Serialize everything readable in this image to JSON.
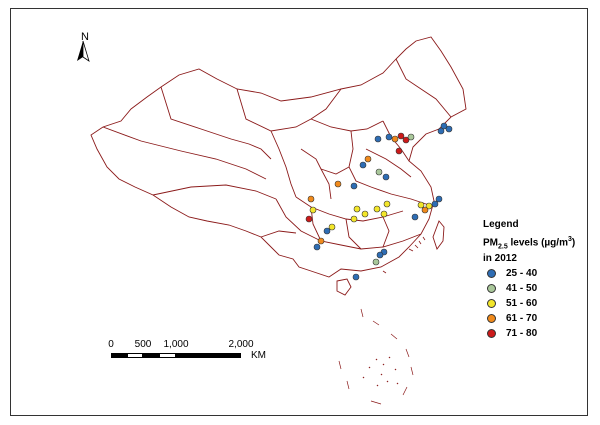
{
  "north_arrow": {
    "label": "N",
    "icon": "north-arrow-icon"
  },
  "legend": {
    "title": "Legend",
    "subtitle_main": "PM",
    "subtitle_sub": "2.5",
    "subtitle_rest": " levels (µg/m",
    "subtitle_sup": "3",
    "subtitle_end": ")",
    "subtitle_line2": "in 2012",
    "classes": [
      {
        "label": "25 - 40",
        "color": "#2e6db4"
      },
      {
        "label": "41 - 50",
        "color": "#a9c79a"
      },
      {
        "label": "51 - 60",
        "color": "#f3e62a"
      },
      {
        "label": "61 - 70",
        "color": "#f08a1c"
      },
      {
        "label": "71 - 80",
        "color": "#cc1a1a"
      }
    ]
  },
  "scale_bar": {
    "ticks": [
      "0",
      "500",
      "1,000",
      "2,000"
    ],
    "unit": "KM"
  },
  "colors": {
    "boundary": "#8b1a1a"
  }
}
